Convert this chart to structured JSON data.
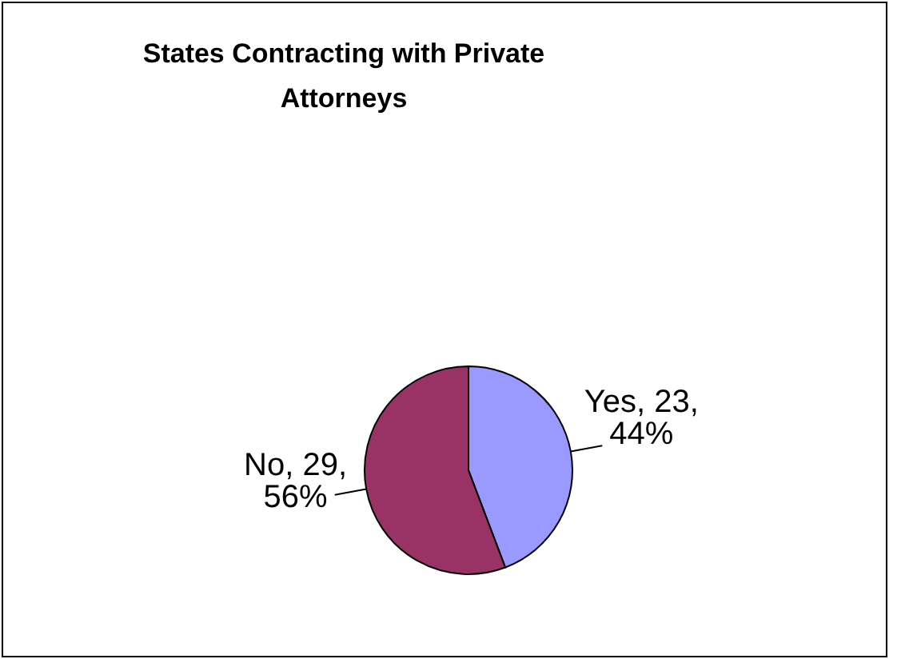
{
  "chart_data": {
    "type": "pie",
    "title": "States Contracting with Private Attorneys",
    "categories": [
      "Yes",
      "No"
    ],
    "values": [
      23,
      29
    ],
    "colors": [
      "#9999ff",
      "#993366"
    ],
    "value_labels": [
      "23, 44%",
      "29, 56%"
    ],
    "legend": false
  }
}
